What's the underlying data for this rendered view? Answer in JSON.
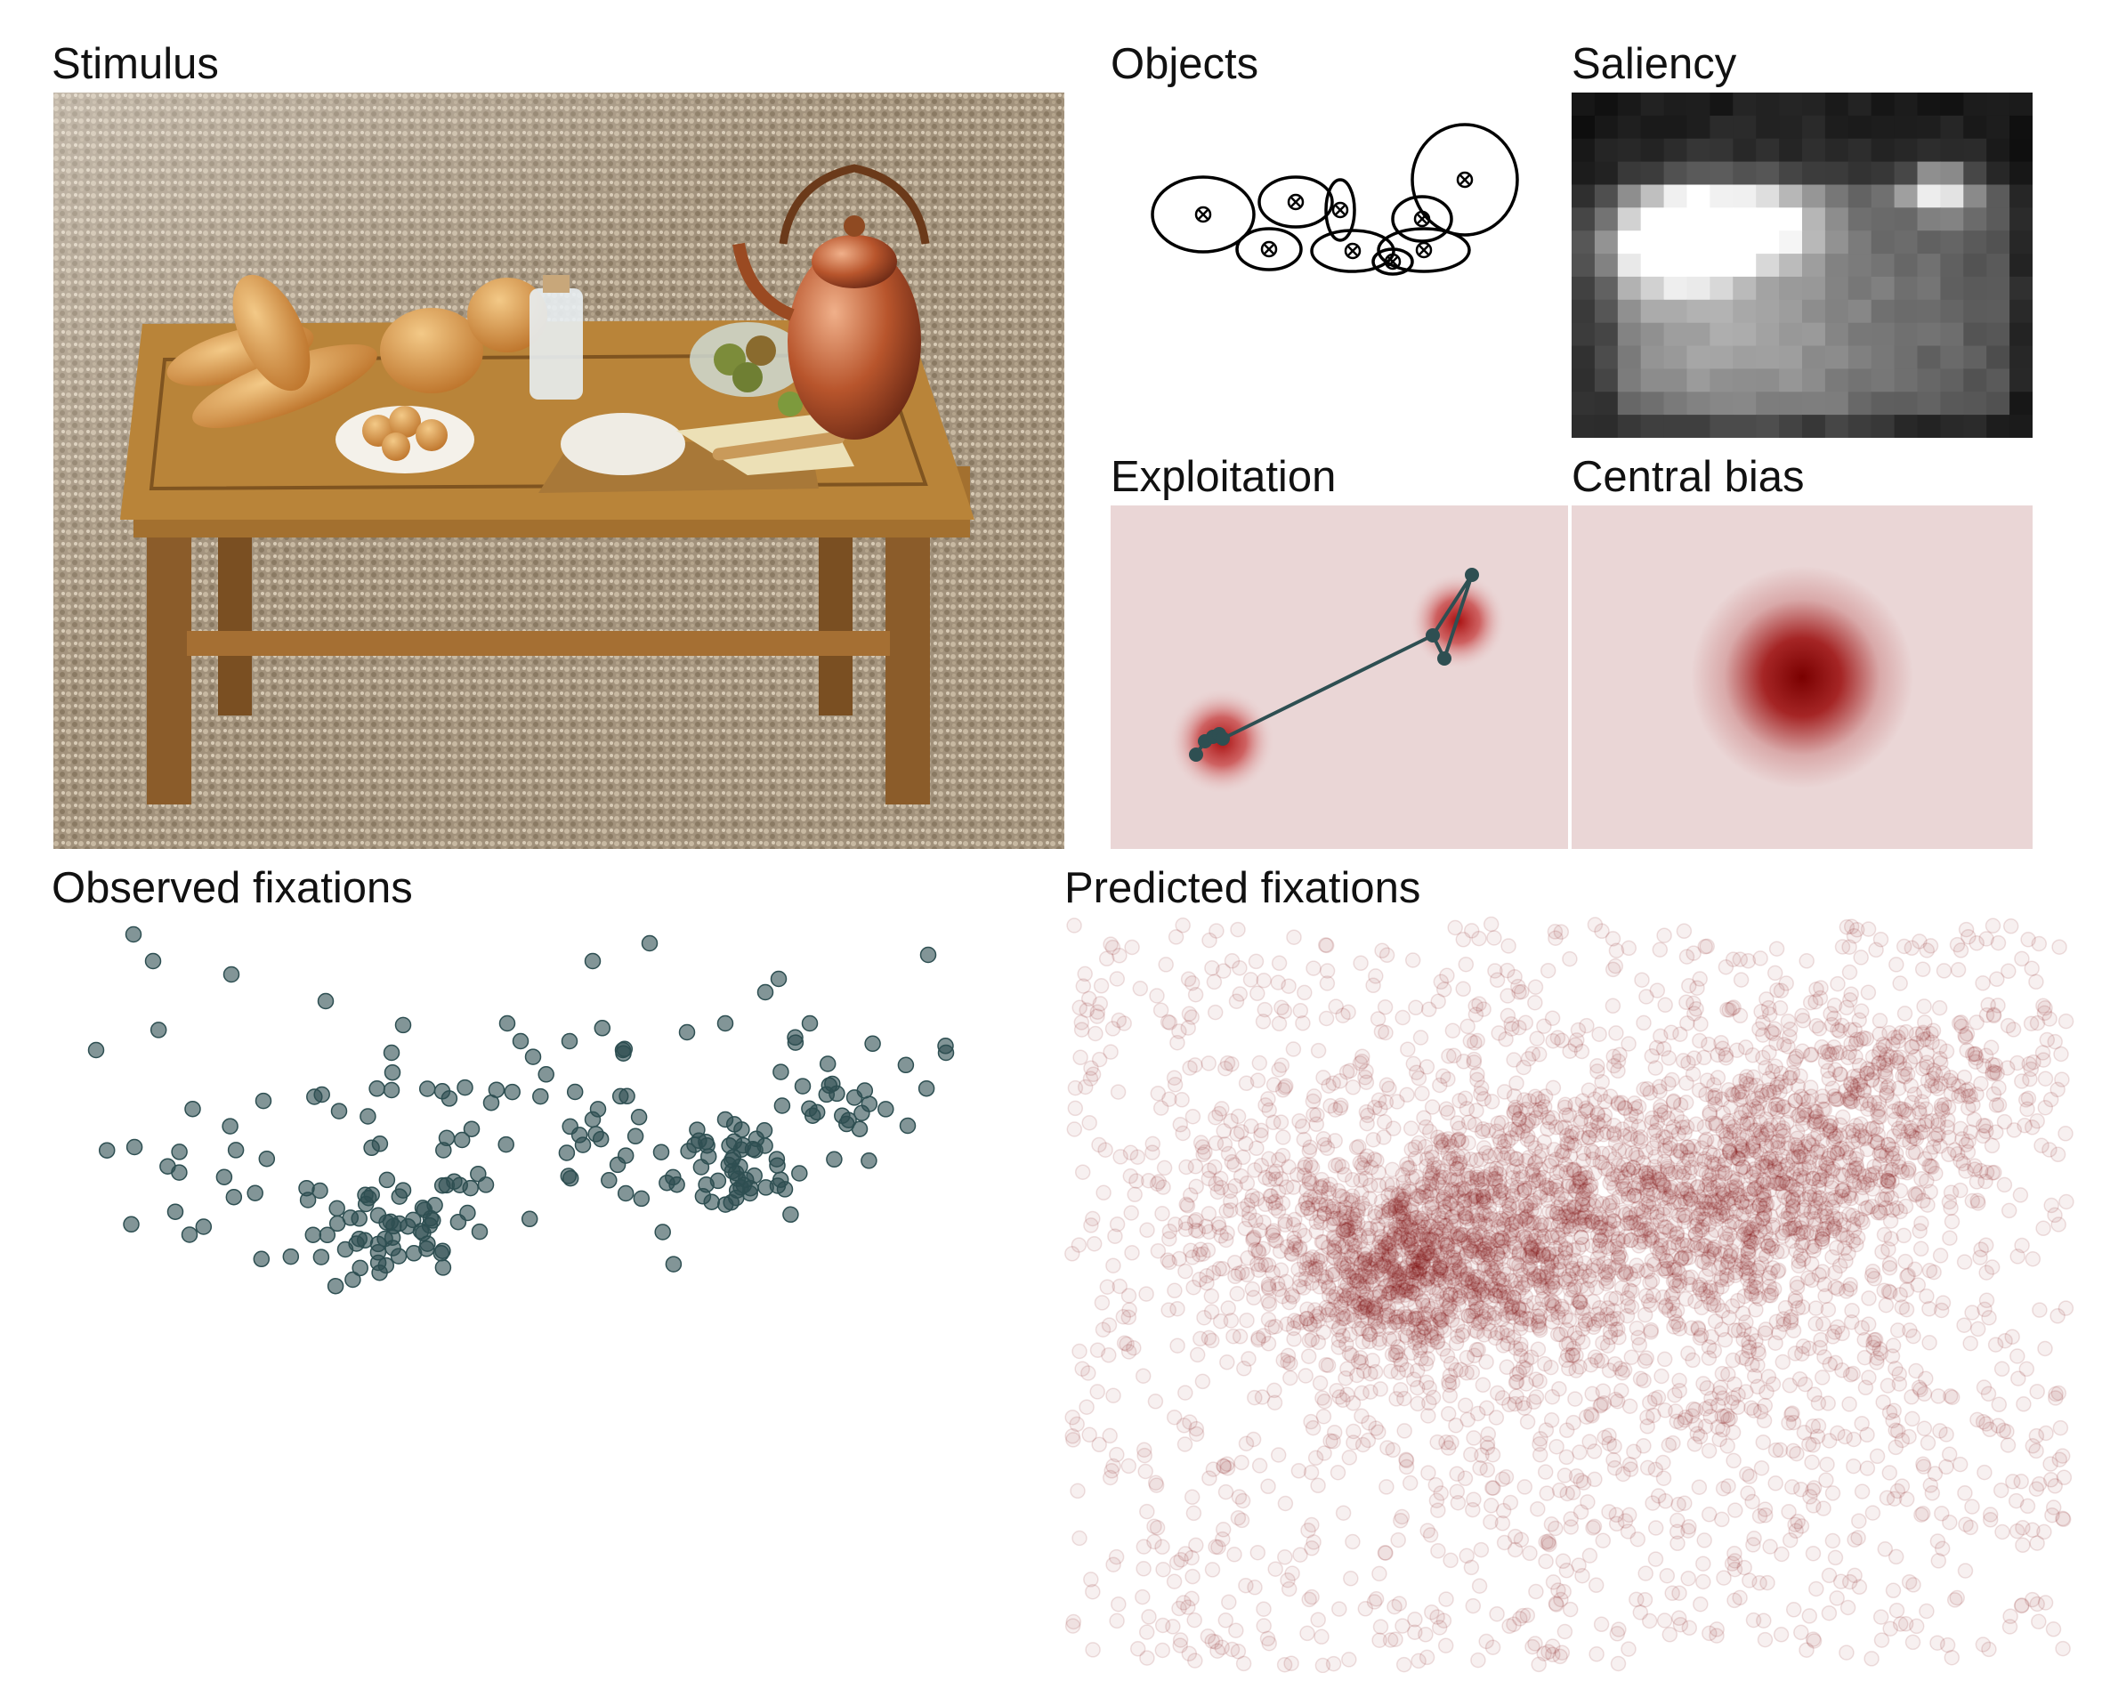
{
  "panels": {
    "stimulus": {
      "title": "Stimulus"
    },
    "objects": {
      "title": "Objects"
    },
    "saliency": {
      "title": "Saliency"
    },
    "exploitation": {
      "title": "Exploitation"
    },
    "central_bias": {
      "title": "Central bias"
    },
    "observed": {
      "title": "Observed fixations"
    },
    "predicted": {
      "title": "Predicted fixations"
    }
  },
  "colors": {
    "fixation_dot": "#2e4f52",
    "heat": "#7a0000",
    "heat_background": "#ead6d6",
    "outline": "#000000"
  }
}
